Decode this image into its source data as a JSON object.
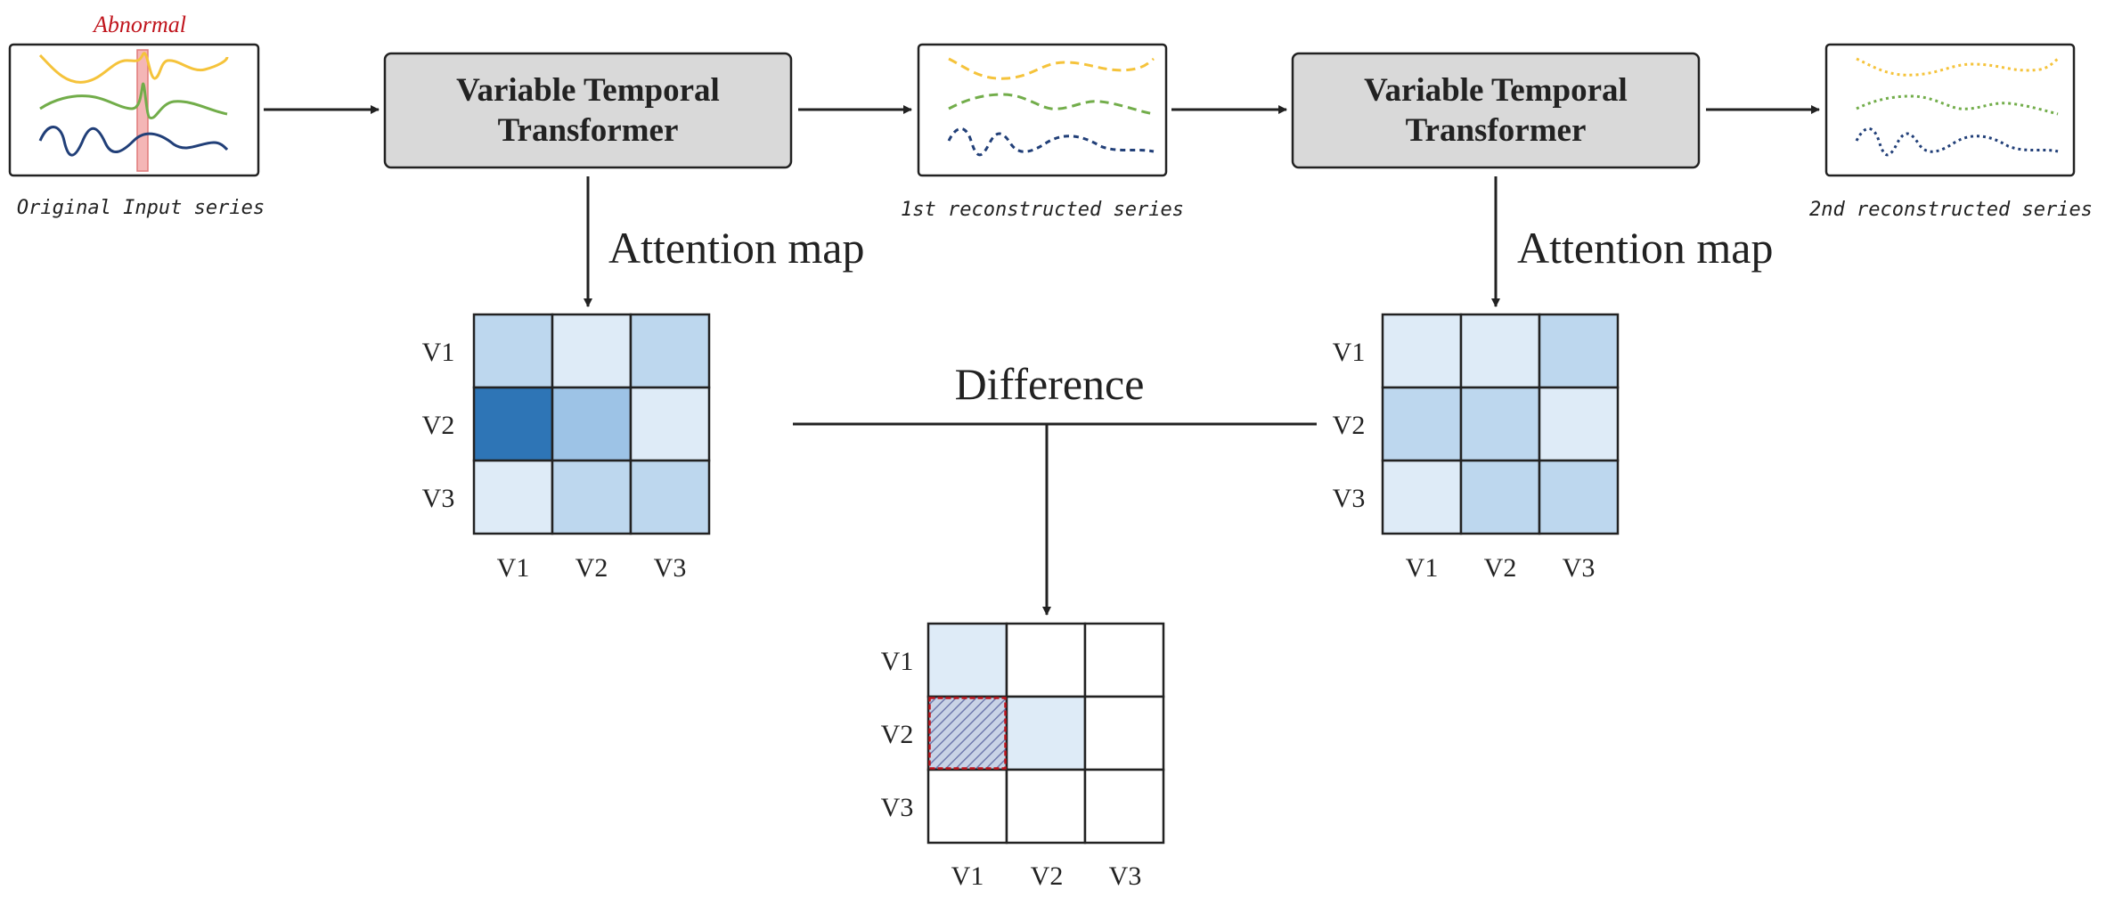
{
  "labels": {
    "abnormal": "Abnormal",
    "original_series": "Original Input series",
    "first_reconstructed": "1st reconstructed  series",
    "second_reconstructed": "2nd reconstructed  series",
    "transformer_line1": "Variable Temporal",
    "transformer_line2": "Transformer",
    "attention_map": "Attention map",
    "difference": "Difference"
  },
  "variables": [
    "V1",
    "V2",
    "V3"
  ],
  "colors": {
    "yellow_series": "#f5c33b",
    "green_series": "#72ad4a",
    "blue_series": "#213f78",
    "transformer_fill": "#d9d9d9",
    "abnormal_text": "#c0141c",
    "anomaly_band": "#f4b6b6",
    "cell_very_light": "#deebf7",
    "cell_light": "#bdd7ee",
    "cell_medium": "#9dc3e6",
    "cell_dark": "#2e75b6"
  },
  "attention_map_1": [
    [
      "cell_light",
      "cell_very_light",
      "cell_light"
    ],
    [
      "cell_dark",
      "cell_medium",
      "cell_very_light"
    ],
    [
      "cell_very_light",
      "cell_light",
      "cell_light"
    ]
  ],
  "attention_map_2": [
    [
      "cell_very_light",
      "cell_very_light",
      "cell_light"
    ],
    [
      "cell_light",
      "cell_light",
      "cell_very_light"
    ],
    [
      "cell_very_light",
      "cell_light",
      "cell_light"
    ]
  ],
  "difference_map": [
    [
      "cell_very_light",
      "white",
      "white"
    ],
    [
      "hatched",
      "cell_very_light",
      "white"
    ],
    [
      "white",
      "white",
      "white"
    ]
  ]
}
